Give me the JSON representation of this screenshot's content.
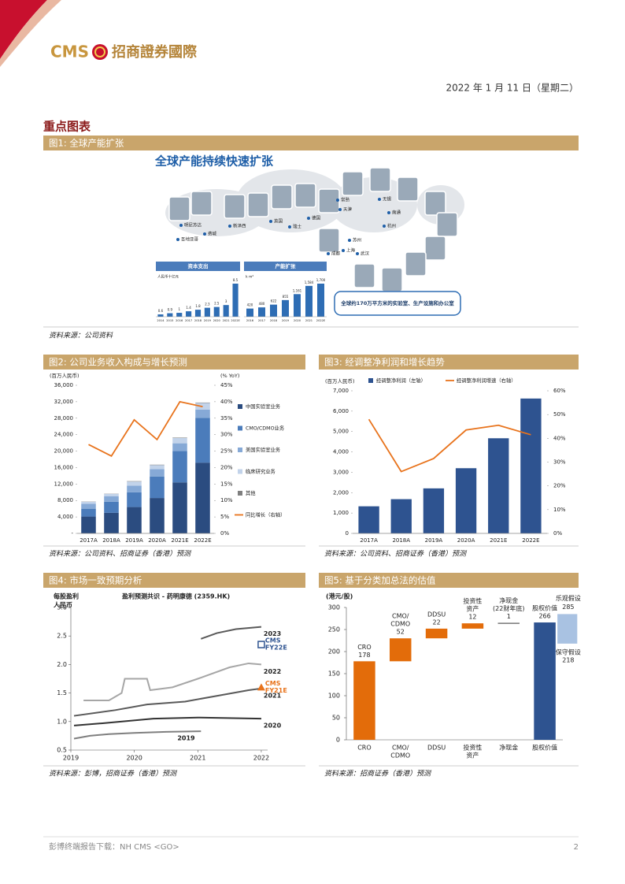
{
  "header": {
    "logo": "CMS",
    "brand": "招商證券國際",
    "date": "2022 年 1 月 11 日（星期二）"
  },
  "section_title": "重点图表",
  "figure1": {
    "title": "图1: 全球产能扩张",
    "headline": "全球产能持续快速扩张",
    "cities": [
      "明尼苏达",
      "圣地亚哥",
      "费城",
      "新泽西",
      "英国",
      "德国",
      "瑞士",
      "天津",
      "常熟",
      "无锡",
      "南通",
      "苏州",
      "上海",
      "杭州",
      "武汉",
      "成都"
    ],
    "callout": "全球约170万平方米的实验室、生产设施和办公室",
    "source": "资料来源：公司资料"
  },
  "chart_data": [
    {
      "type": "mini-bar",
      "title": "资本支出",
      "unit": "人民币十亿元",
      "color": "#2e6db4",
      "categories": [
        "2014",
        "2015",
        "2016",
        "2017",
        "2018",
        "2019",
        "2020",
        "2021",
        "2022E"
      ],
      "values": [
        0.6,
        0.9,
        1.0,
        1.4,
        1.8,
        2.3,
        2.5,
        3.0,
        8.5
      ]
    },
    {
      "type": "mini-bar",
      "title": "产能扩张",
      "unit": "k m²",
      "color": "#2e6db4",
      "categories": [
        "2016",
        "2017",
        "2018",
        "2019",
        "2020",
        "2021",
        "2022E"
      ],
      "values": [
        420,
        480,
        622,
        855,
        1161,
        1584,
        1700
      ],
      "value_labels": [
        "420",
        "480",
        "622",
        "855",
        "1,161",
        "1,584",
        "1,700"
      ]
    },
    {
      "type": "combo",
      "stacked": true,
      "title": "图2: 公司业务收入构成与增长预测",
      "source": "资料来源：公司资料、招商证券（香港）预测",
      "unit_left": "(百万人民币)",
      "unit_right": "(% YoY)",
      "legend": "right",
      "categories": [
        "2017A",
        "2018A",
        "2019A",
        "2020A",
        "2021E",
        "2022E"
      ],
      "series": [
        {
          "name": "中国实验室业务",
          "color": "#2b4c80",
          "values": [
            4100,
            5000,
            6400,
            8600,
            12400,
            17200
          ]
        },
        {
          "name": "CMO/CDMO业务",
          "color": "#4b7cbb",
          "values": [
            1900,
            2700,
            3600,
            5200,
            7600,
            10900
          ]
        },
        {
          "name": "美国实验室业务",
          "color": "#86a9d6",
          "values": [
            1200,
            1300,
            1600,
            1800,
            1900,
            2000
          ]
        },
        {
          "name": "临床研究业务",
          "color": "#c2d3ea",
          "values": [
            500,
            600,
            1000,
            1000,
            1300,
            1600
          ]
        },
        {
          "name": "其他",
          "color": "#7f7f7f",
          "values": [
            50,
            50,
            100,
            100,
            100,
            100
          ]
        },
        {
          "name": "同比增长（右轴）",
          "type": "line",
          "axis": "y2",
          "color": "#e8731c",
          "values": [
            27,
            23.5,
            34.5,
            28.5,
            40,
            38.5
          ]
        }
      ],
      "ylim": [
        0,
        36000
      ],
      "yticks": [
        {
          "value": 0,
          "label": "-"
        },
        {
          "value": 4000,
          "label": "4,000"
        },
        {
          "value": 8000,
          "label": "8,000"
        },
        {
          "value": 12000,
          "label": "12,000"
        },
        {
          "value": 16000,
          "label": "16,000"
        },
        {
          "value": 20000,
          "label": "20,000"
        },
        {
          "value": 24000,
          "label": "24,000"
        },
        {
          "value": 28000,
          "label": "28,000"
        },
        {
          "value": 32000,
          "label": "32,000"
        },
        {
          "value": 36000,
          "label": "36,000"
        }
      ],
      "y2lim": [
        0,
        45
      ],
      "y2ticks": [
        {
          "value": 0,
          "label": "0%"
        },
        {
          "value": 5,
          "label": "5%"
        },
        {
          "value": 10,
          "label": "10%"
        },
        {
          "value": 15,
          "label": "15%"
        },
        {
          "value": 20,
          "label": "20%"
        },
        {
          "value": 25,
          "label": "25%"
        },
        {
          "value": 30,
          "label": "30%"
        },
        {
          "value": 35,
          "label": "35%"
        },
        {
          "value": 40,
          "label": "40%"
        },
        {
          "value": 45,
          "label": "45%"
        }
      ]
    },
    {
      "type": "combo",
      "stacked": false,
      "title": "图3: 经调整净利润和增长趋势",
      "source": "资料来源：公司资料、招商证券（香港）预测",
      "unit_left": "(百万人民币)",
      "legend": "top",
      "categories": [
        "2017A",
        "2018A",
        "2019A",
        "2020A",
        "2021E",
        "2022E"
      ],
      "series": [
        {
          "name": "经调整净利润（左轴）",
          "color": "#2e5390",
          "values": [
            1330,
            1680,
            2210,
            3200,
            4670,
            6620
          ]
        },
        {
          "name": "经调整净利润增速（右轴）",
          "type": "line",
          "axis": "y2",
          "color": "#e8731c",
          "values": [
            48,
            26,
            31.5,
            43.5,
            45.5,
            41.5
          ]
        }
      ],
      "ylim": [
        0,
        7000
      ],
      "yticks": [
        0,
        {
          "value": 1000,
          "label": "1,000"
        },
        {
          "value": 2000,
          "label": "2,000"
        },
        {
          "value": 3000,
          "label": "3,000"
        },
        {
          "value": 4000,
          "label": "4,000"
        },
        {
          "value": 5000,
          "label": "5,000"
        },
        {
          "value": 6000,
          "label": "6,000"
        },
        {
          "value": 7000,
          "label": "7,000"
        }
      ],
      "y2lim": [
        0,
        60
      ],
      "y2ticks": [
        {
          "value": 0,
          "label": "0%"
        },
        {
          "value": 10,
          "label": "10%"
        },
        {
          "value": 20,
          "label": "20%"
        },
        {
          "value": 30,
          "label": "30%"
        },
        {
          "value": 40,
          "label": "40%"
        },
        {
          "value": 50,
          "label": "50%"
        },
        {
          "value": 60,
          "label": "60%"
        }
      ]
    },
    {
      "type": "line",
      "title": "图4: 市场一致预期分析",
      "subtitle": "盈利预测共识 - 药明康德 (2359.HK)",
      "ylabel": [
        "每股盈利",
        "人民币"
      ],
      "source": "资料来源：彭博，招商证券（香港）预测",
      "xlim": [
        2019,
        2022.1
      ],
      "xticks": [
        2019,
        2020,
        2021,
        2022
      ],
      "ylim": [
        0.5,
        3.0
      ],
      "yticks": [
        0.5,
        {
          "value": 1.0,
          "label": "1.0"
        },
        1.5,
        {
          "value": 2.0,
          "label": "2.0"
        },
        2.5,
        {
          "value": 3.0,
          "label": "3.0"
        }
      ],
      "series": [
        {
          "name": "2019",
          "color": "#7f7f7f",
          "x": [
            2019.05,
            2019.3,
            2019.6,
            2020,
            2020.5,
            2021.05
          ],
          "values": [
            0.7,
            0.75,
            0.78,
            0.8,
            0.82,
            0.83
          ]
        },
        {
          "name": "2020",
          "color": "#333333",
          "x": [
            2019.05,
            2019.5,
            2020.3,
            2021,
            2022
          ],
          "values": [
            0.93,
            0.97,
            1.05,
            1.07,
            1.05
          ]
        },
        {
          "name": "2021",
          "color": "#595959",
          "x": [
            2019.05,
            2019.7,
            2020.2,
            2020.8,
            2021.3,
            2021.8,
            2022
          ],
          "values": [
            1.1,
            1.2,
            1.3,
            1.35,
            1.45,
            1.55,
            1.58
          ]
        },
        {
          "name": "2022",
          "color": "#a6a6a6",
          "x": [
            2019.2,
            2019.6,
            2019.8,
            2019.85,
            2020.2,
            2020.25,
            2020.6,
            2021,
            2021.5,
            2021.8,
            2022
          ],
          "values": [
            1.37,
            1.37,
            1.5,
            1.75,
            1.75,
            1.55,
            1.6,
            1.75,
            1.95,
            2.02,
            2.0
          ]
        },
        {
          "name": "2023",
          "color": "#595959",
          "x": [
            2021.05,
            2021.3,
            2021.6,
            2022
          ],
          "values": [
            2.45,
            2.55,
            2.62,
            2.66
          ]
        }
      ],
      "points": [
        {
          "label": [
            "CMS",
            "FY22E"
          ],
          "x": 2022,
          "value": 2.35,
          "color": "#2e5390",
          "marker": "square"
        },
        {
          "label": [
            "CMS",
            "FY21E"
          ],
          "x": 2022,
          "value": 1.6,
          "color": "#e8731c",
          "marker": "triangle"
        }
      ]
    },
    {
      "type": "waterfall",
      "title": "图5: 基于分类加总法的估值",
      "source": "资料来源：招商证券（香港）预测",
      "unit": "(港元/股)",
      "categories": [
        [
          "CRO"
        ],
        [
          "CMO/",
          "CDMO"
        ],
        [
          "DDSU"
        ],
        [
          "投资性",
          "资产"
        ],
        [
          "净现金"
        ],
        [
          "股权价值"
        ]
      ],
      "bar_labels": [
        [
          "CRO"
        ],
        [
          "CMO/",
          "CDMO"
        ],
        [
          "DDSU"
        ],
        [
          "投资性",
          "资产"
        ],
        [
          "净现金",
          "(22财年底)"
        ],
        [
          "股权价值"
        ]
      ],
      "values": [
        178,
        52,
        22,
        12,
        1,
        266
      ],
      "measures": [
        "relative",
        "relative",
        "relative",
        "relative",
        "relative",
        "total"
      ],
      "color": "#e36c0a",
      "total_color": "#2e5390",
      "range": {
        "low": 218,
        "high": 285,
        "low_label": "保守假设",
        "high_label": "乐观假设",
        "color": "#a9c2e2"
      },
      "ylim": [
        0,
        300
      ],
      "yticks": [
        0,
        50,
        100,
        150,
        200,
        250,
        300
      ]
    }
  ],
  "footer": {
    "text": "彭博终端报告下载：NH CMS <GO>",
    "page": "2"
  }
}
